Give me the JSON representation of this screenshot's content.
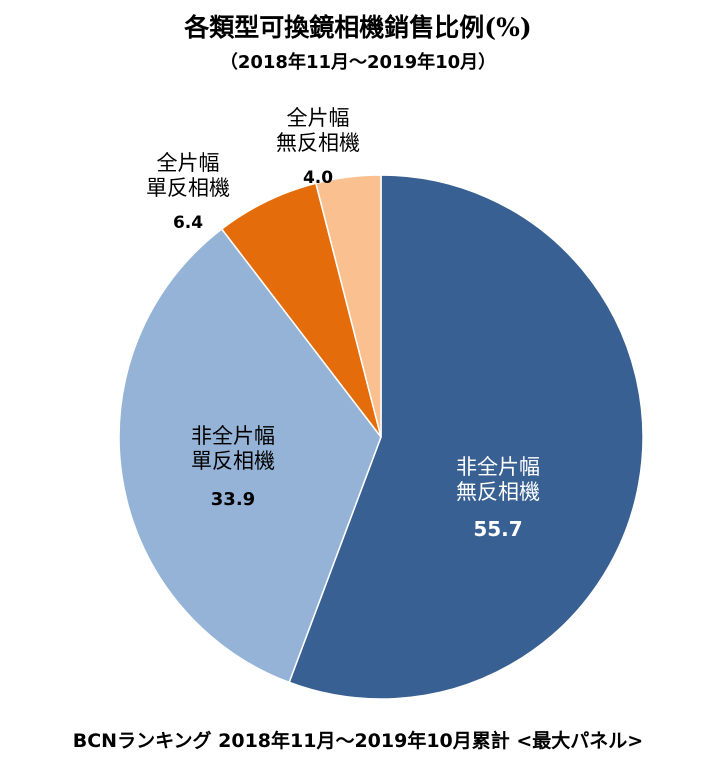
{
  "chart_data": {
    "type": "pie",
    "title": "各類型可換鏡相機銷售比例(%)",
    "subtitle": "（2018年11月～2019年10月）",
    "footer": "BCNランキング 2018年11月～2019年10月累計 <最大パネル>",
    "slices": [
      {
        "label_line1": "非全片幅",
        "label_line2": "無反相機",
        "value": 55.7,
        "value_label": "55.7",
        "color": "#386092",
        "label_color": "#ffffff"
      },
      {
        "label_line1": "非全片幅",
        "label_line2": "單反相機",
        "value": 33.9,
        "value_label": "33.9",
        "color": "#95b3d7",
        "label_color": "#000000"
      },
      {
        "label_line1": "全片幅",
        "label_line2": "單反相機",
        "value": 6.4,
        "value_label": "6.4",
        "color": "#e46c0a",
        "label_color": "#000000"
      },
      {
        "label_line1": "全片幅",
        "label_line2": "無反相機",
        "value": 4.0,
        "value_label": "4.0",
        "color": "#fac090",
        "label_color": "#000000"
      }
    ]
  }
}
